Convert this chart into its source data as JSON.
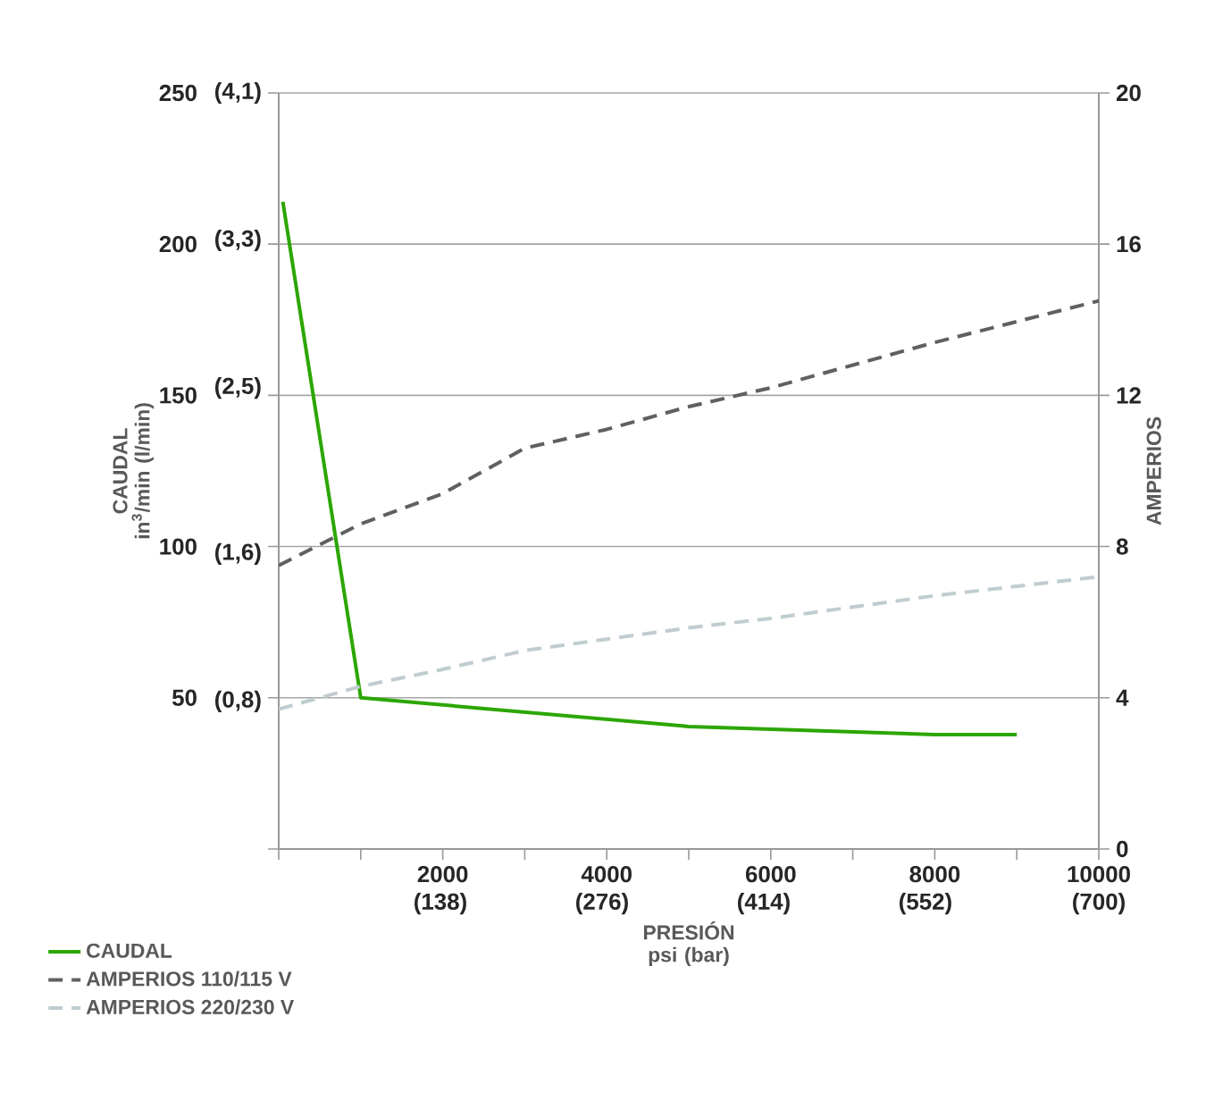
{
  "chart_data": {
    "type": "line",
    "xlabel": "PRESIÓN psi (bar)",
    "ylabel": "CAUDAL in$^{3}$/min  (l/min)",
    "y2label": "AMPERIOS",
    "xlim": [
      0,
      10000
    ],
    "ylim": [
      0,
      250
    ],
    "y2lim": [
      0,
      20
    ],
    "x2lim": [
      0,
      700
    ],
    "y3lim": [
      0,
      4.1
    ],
    "xticks": [
      {
        "value": 0,
        "label": null
      },
      {
        "value": 1000,
        "label": null
      },
      2000,
      {
        "value": 3000,
        "label": null
      },
      4000,
      {
        "value": 5000,
        "label": null
      },
      6000,
      {
        "value": 7000,
        "label": null
      },
      8000,
      {
        "value": 9000,
        "label": null
      },
      10000
    ],
    "x2ticks": [
      {
        "value": 138,
        "label": "(138)"
      },
      {
        "value": 276,
        "label": "(276)"
      },
      {
        "value": 414,
        "label": "(414)"
      },
      {
        "value": 552,
        "label": "(552)"
      },
      {
        "value": 700,
        "label": "(700)"
      }
    ],
    "yticks": [
      {
        "value": 0,
        "label": null
      },
      50,
      100,
      150,
      200,
      250
    ],
    "y3ticks": [
      {
        "value": 0.8,
        "label": "(0,8)"
      },
      {
        "value": 1.6,
        "label": "(1,6)"
      },
      {
        "value": 2.5,
        "label": "(2,5)"
      },
      {
        "value": 3.3,
        "label": "(3,3)"
      },
      {
        "value": 4.1,
        "label": "(4,1)"
      }
    ],
    "y2ticks": [
      0,
      4,
      8,
      12,
      16,
      20
    ],
    "grid": "y",
    "legend": "bottom left",
    "series": [
      {
        "name": "CAUDAL",
        "color": "#2ca600",
        "axis": "y",
        "line_style": "solid",
        "x": [
          50,
          1000,
          5000,
          8000,
          9000
        ],
        "values": [
          214,
          50,
          40.5,
          37.8,
          37.8
        ]
      },
      {
        "name": "AMPERIOS 110/115 V",
        "color": "#606060",
        "axis": "y2",
        "line_style": "dashed",
        "x": [
          0,
          1000,
          2000,
          3000,
          4000,
          5000,
          6000,
          8000,
          10000
        ],
        "values": [
          7.5,
          8.6,
          9.4,
          10.6,
          11.1,
          11.7,
          12.2,
          13.4,
          14.5
        ]
      },
      {
        "name": "AMPERIOS 220/230 V",
        "color": "#c0cdd0",
        "axis": "y2",
        "line_style": "dashed",
        "x": [
          0,
          1000,
          2000,
          3000,
          4000,
          5000,
          6000,
          8000,
          10000
        ],
        "values": [
          3.7,
          4.3,
          4.75,
          5.25,
          5.55,
          5.85,
          6.1,
          6.7,
          7.2
        ]
      }
    ]
  }
}
